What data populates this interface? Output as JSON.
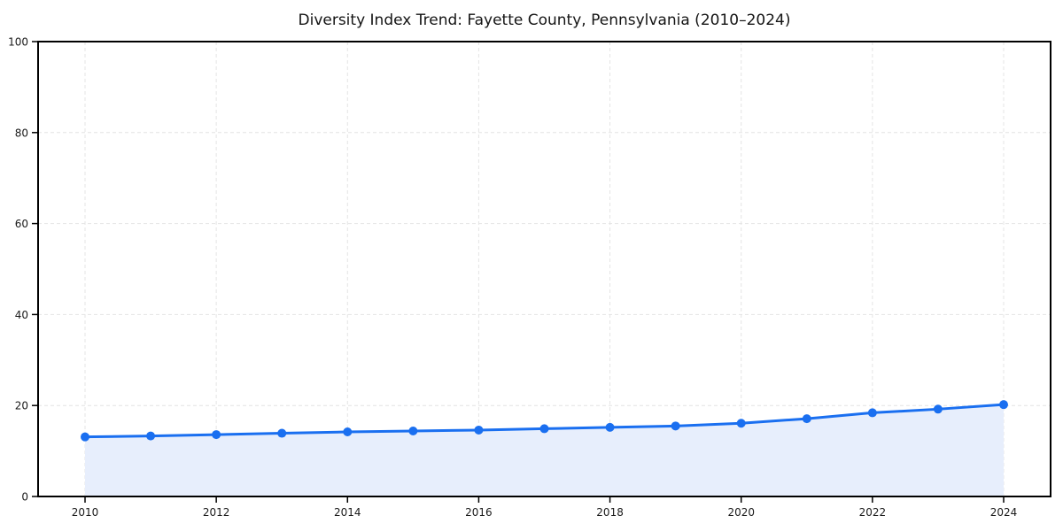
{
  "chart_data": {
    "type": "area",
    "title": "Diversity Index Trend: Fayette County, Pennsylvania (2010–2024)",
    "series_name": "Diversity Index",
    "x": [
      2010,
      2011,
      2012,
      2013,
      2014,
      2015,
      2016,
      2017,
      2018,
      2019,
      2020,
      2021,
      2022,
      2023,
      2024
    ],
    "values": [
      13.1,
      13.3,
      13.6,
      13.9,
      14.2,
      14.4,
      14.6,
      14.9,
      15.2,
      15.5,
      16.1,
      17.1,
      18.4,
      19.2,
      20.2
    ],
    "xlabel": "",
    "ylabel": "",
    "ylim": [
      0,
      100
    ],
    "xlim_years": [
      2010,
      2024
    ],
    "yticks": [
      0,
      20,
      40,
      60,
      80,
      100
    ],
    "xticks": [
      2010,
      2012,
      2014,
      2016,
      2018,
      2020,
      2022,
      2024
    ],
    "grid": "dashed",
    "legend_position": "none",
    "colors": {
      "line": "#1a6ff0",
      "marker": "#1a6ff0",
      "fill": "#e7eefc",
      "grid": "#e4e4e4",
      "axis": "#000000",
      "tick_text": "#1a1a1a",
      "title_text": "#141414",
      "background": "#ffffff"
    }
  }
}
